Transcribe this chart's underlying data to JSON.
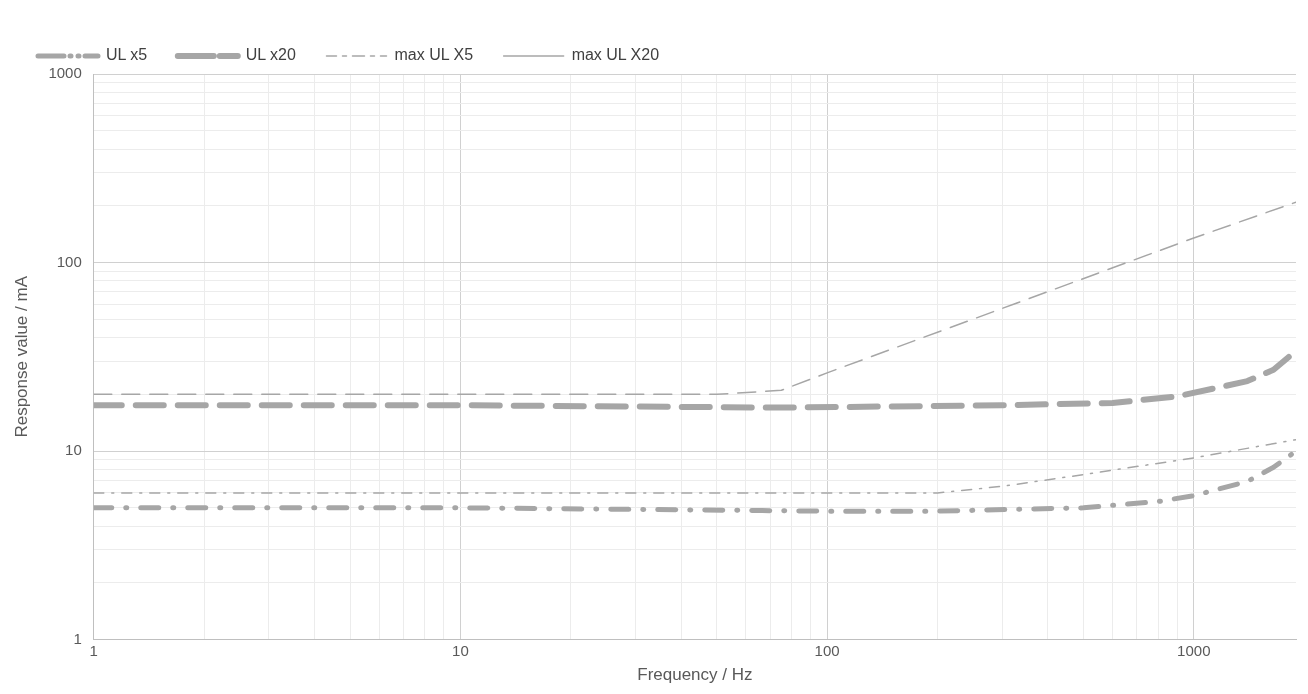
{
  "chart_data": {
    "type": "line",
    "xlabel": "Frequency / Hz",
    "ylabel": "Response value / mA",
    "log": "xy",
    "grid": true,
    "legend": "top left",
    "marker": "none",
    "xlim": [
      1,
      1900
    ],
    "ylim": [
      1,
      1000
    ],
    "xticks": [
      1,
      {
        "value": 2,
        "label": null
      },
      {
        "value": 3,
        "label": null
      },
      {
        "value": 4,
        "label": null
      },
      {
        "value": 5,
        "label": null
      },
      {
        "value": 6,
        "label": null
      },
      {
        "value": 7,
        "label": null
      },
      {
        "value": 8,
        "label": null
      },
      {
        "value": 9,
        "label": null
      },
      10,
      {
        "value": 20,
        "label": null
      },
      {
        "value": 30,
        "label": null
      },
      {
        "value": 40,
        "label": null
      },
      {
        "value": 50,
        "label": null
      },
      {
        "value": 60,
        "label": null
      },
      {
        "value": 70,
        "label": null
      },
      {
        "value": 80,
        "label": null
      },
      {
        "value": 90,
        "label": null
      },
      100,
      {
        "value": 200,
        "label": null
      },
      {
        "value": 300,
        "label": null
      },
      {
        "value": 400,
        "label": null
      },
      {
        "value": 500,
        "label": null
      },
      {
        "value": 600,
        "label": null
      },
      {
        "value": 700,
        "label": null
      },
      {
        "value": 800,
        "label": null
      },
      {
        "value": 900,
        "label": null
      },
      1000
    ],
    "yticks": [
      1,
      {
        "value": 2,
        "label": null
      },
      {
        "value": 3,
        "label": null
      },
      {
        "value": 4,
        "label": null
      },
      {
        "value": 5,
        "label": null
      },
      {
        "value": 6,
        "label": null
      },
      {
        "value": 7,
        "label": null
      },
      {
        "value": 8,
        "label": null
      },
      {
        "value": 9,
        "label": null
      },
      10,
      {
        "value": 20,
        "label": null
      },
      {
        "value": 30,
        "label": null
      },
      {
        "value": 40,
        "label": null
      },
      {
        "value": 50,
        "label": null
      },
      {
        "value": 60,
        "label": null
      },
      {
        "value": 70,
        "label": null
      },
      {
        "value": 80,
        "label": null
      },
      {
        "value": 90,
        "label": null
      },
      100,
      {
        "value": 200,
        "label": null
      },
      {
        "value": 300,
        "label": null
      },
      {
        "value": 400,
        "label": null
      },
      {
        "value": 500,
        "label": null
      },
      {
        "value": 600,
        "label": null
      },
      {
        "value": 700,
        "label": null
      },
      {
        "value": 800,
        "label": null
      },
      {
        "value": 900,
        "label": null
      },
      1000
    ],
    "series": [
      {
        "name": "UL x5",
        "color": "#a6a6a6",
        "line_style": "dashdot",
        "x": [
          1,
          10,
          100,
          200,
          500,
          800,
          1000,
          1400,
          1650,
          1900
        ],
        "values": [
          5,
          5,
          4.8,
          4.8,
          5,
          5.4,
          5.8,
          6.9,
          8.2,
          10
        ]
      },
      {
        "name": "UL x20",
        "color": "#a6a6a6",
        "line_style": "dashed",
        "x": [
          1,
          10,
          75,
          300,
          600,
          900,
          1200,
          1400,
          1650,
          1900
        ],
        "values": [
          17.5,
          17.5,
          17,
          17.5,
          18,
          19.5,
          22,
          23.5,
          27,
          34
        ]
      },
      {
        "name": "max UL X5",
        "color": "#a6a6a6",
        "line_style": "dashdot",
        "x": [
          1,
          200,
          300,
          500,
          1000,
          1900
        ],
        "values": [
          6,
          6,
          6.5,
          7.5,
          9.2,
          11.5
        ]
      },
      {
        "name": "max UL X20",
        "color": "#a6a6a6",
        "line_style": "dashed",
        "x": [
          1,
          50,
          75,
          100,
          1000,
          1900
        ],
        "values": [
          20,
          20,
          21,
          26,
          135,
          209
        ]
      }
    ]
  }
}
